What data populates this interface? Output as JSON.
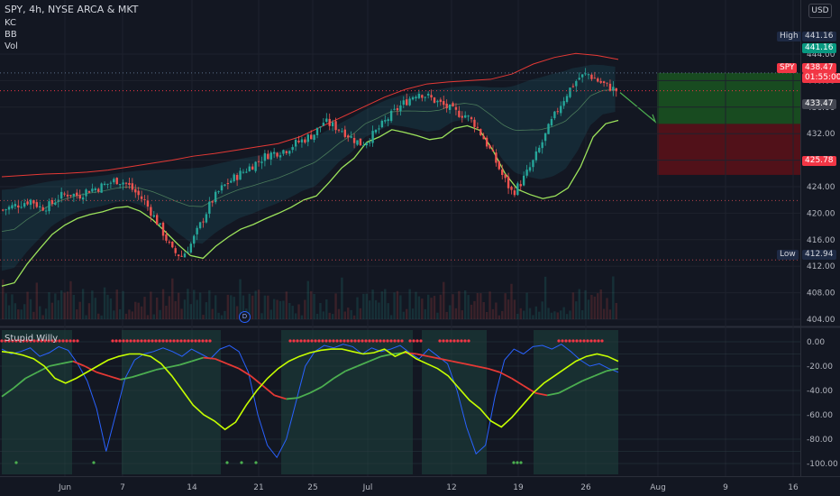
{
  "header": {
    "symbol_line": "SPY, 4h, NYSE ARCA & MKT",
    "currency": "USD",
    "indicators": [
      "KC",
      "BB",
      "Vol"
    ]
  },
  "oscillator": {
    "name": "Stupid Willy"
  },
  "price_scale": {
    "ticks": [
      "444.00",
      "440.00",
      "436.00",
      "432.00",
      "428.00",
      "424.00",
      "420.00",
      "416.00",
      "412.00",
      "408.00",
      "404.00"
    ]
  },
  "osc_scale": {
    "ticks": [
      "0.00",
      "-20.00",
      "-40.00",
      "-60.00",
      "-80.00",
      "-100.00"
    ]
  },
  "time_axis": {
    "labels": [
      "Jun",
      "7",
      "14",
      "21",
      "25",
      "Jul",
      "12",
      "19",
      "26",
      "Aug",
      "9",
      "16"
    ]
  },
  "markers": {
    "high_label": "High",
    "high_value": "441.16",
    "low_label": "Low",
    "low_value": "412.94",
    "target_value": "441.16",
    "symbol_tag": "SPY",
    "last_price": "438.47",
    "countdown": "01:55:00",
    "entry_value": "433.47",
    "stop_value": "425.78",
    "dividend_marker": "D"
  },
  "colors": {
    "background": "#131722",
    "up_candle": "#26a69a",
    "down_candle": "#ef5350",
    "keltner_upper": "#e53935",
    "keltner_lower": "#9ce35b",
    "target_zone": "#1b5e20",
    "stop_zone": "#5d1018",
    "osc_line": "#2962ff",
    "osc_fast": "#c6ff00",
    "osc_slow_bull": "#4caf50",
    "osc_slow_bear": "#e53935"
  },
  "chart_data": [
    {
      "type": "candlestick",
      "title": "SPY, 4h, NYSE ARCA & MKT",
      "ylabel": "USD",
      "ylim": [
        403,
        445
      ],
      "x": [
        "Jun",
        "7",
        "14",
        "21",
        "25",
        "Jul",
        "12",
        "19",
        "26"
      ],
      "close_path": [
        420.5,
        421,
        421.5,
        422,
        420.8,
        421.2,
        422.5,
        423,
        422.6,
        423.5,
        423.8,
        424.4,
        425,
        424.6,
        423.2,
        421.8,
        419.5,
        417,
        414.2,
        413.5,
        415.5,
        418.5,
        421.5,
        423.5,
        424.8,
        425.8,
        426.8,
        427.8,
        428.8,
        429.2,
        429.6,
        430.5,
        431.2,
        432,
        433.8,
        433.2,
        432.5,
        431.3,
        430.4,
        431.5,
        433,
        434.6,
        436,
        437.2,
        438.3,
        437.6,
        436.8,
        436,
        435.2,
        434.8,
        433.5,
        431.2,
        428.5,
        425.5,
        423,
        424.8,
        427.2,
        430.2,
        433.4,
        436.2,
        438.6,
        440.4,
        441,
        440,
        439.2,
        438.5
      ],
      "keltner_upper": [
        425.5,
        425.7,
        425.9,
        426,
        426.2,
        426.5,
        427,
        427.5,
        428,
        428.6,
        429,
        429.5,
        430,
        430.5,
        431.5,
        433,
        434.5,
        436,
        437.5,
        438.7,
        439.5,
        439.8,
        440,
        440.2,
        441,
        442.5,
        443.5,
        444.1,
        443.8,
        443.2
      ],
      "keltner_lower": [
        409,
        409.5,
        412.3,
        414.6,
        416.8,
        418.2,
        419.2,
        419.8,
        420.2,
        420.8,
        421,
        420.3,
        419,
        417.2,
        415.3,
        413.6,
        413.2,
        415,
        416.4,
        417.6,
        418.3,
        419.2,
        420,
        420.9,
        422,
        422.6,
        424.6,
        426.8,
        428.3,
        430.7,
        431.5,
        432.6,
        432.2,
        431.7,
        431.1,
        431.4,
        432.8,
        433.2,
        432.5,
        429.6,
        426,
        423.6,
        422.8,
        422.2,
        422.6,
        423.8,
        427,
        431.5,
        433.5,
        434
      ]
    },
    {
      "type": "line",
      "title": "Stupid Willy",
      "ylim": [
        -105,
        5
      ],
      "series": [
        {
          "values": [
            -6,
            -10,
            -8,
            -5,
            -12,
            -9,
            -4,
            -7,
            -18,
            -32,
            -55,
            -90,
            -60,
            -30,
            -15,
            -10,
            -8,
            -5,
            -8,
            -12,
            -6,
            -10,
            -14,
            -6,
            -3,
            -8,
            -25,
            -60,
            -85,
            -95,
            -80,
            -50,
            -20,
            -8,
            -3,
            -5,
            -2,
            -4,
            -10,
            -5,
            -8,
            -6,
            -3,
            -9,
            -14,
            -6,
            -12,
            -18,
            -40,
            -70,
            -92,
            -85,
            -45,
            -15,
            -6,
            -10,
            -4,
            -3,
            -6,
            -2,
            -8,
            -15,
            -20,
            -18,
            -22,
            -25
          ]
        },
        {
          "values": [
            -8,
            -9,
            -11,
            -14,
            -20,
            -30,
            -34,
            -30,
            -25,
            -20,
            -15,
            -12,
            -10,
            -10,
            -12,
            -18,
            -28,
            -40,
            -52,
            -60,
            -65,
            -72,
            -66,
            -52,
            -40,
            -30,
            -22,
            -16,
            -12,
            -9,
            -7,
            -6,
            -6,
            -8,
            -10,
            -9,
            -6,
            -12,
            -8,
            -14,
            -18,
            -22,
            -28,
            -38,
            -48,
            -55,
            -65,
            -70,
            -62,
            -52,
            -42,
            -34,
            -28,
            -22,
            -16,
            -12,
            -10,
            -12,
            -16
          ]
        },
        {
          "values": [
            -45,
            -38,
            -30,
            -25,
            -20,
            -18,
            -16,
            -20,
            -25,
            -28,
            -31,
            -29,
            -26,
            -23,
            -21,
            -19,
            -16,
            -13,
            -14,
            -18,
            -22,
            -28,
            -36,
            -44,
            -47,
            -46,
            -42,
            -37,
            -30,
            -24,
            -20,
            -16,
            -12,
            -10,
            -9,
            -10,
            -12,
            -14,
            -16,
            -18,
            -20,
            -22,
            -25,
            -30,
            -36,
            -42,
            -44,
            -42,
            -37,
            -32,
            -28,
            -24,
            -22
          ]
        }
      ]
    }
  ]
}
